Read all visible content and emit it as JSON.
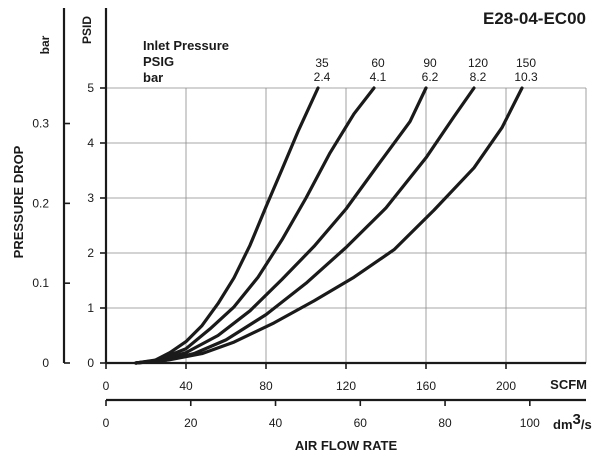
{
  "chart_data": {
    "type": "line",
    "title": "E28-04-EC00",
    "xlabel": "AIR FLOW RATE",
    "ylabel": "PRESSURE DROP",
    "x_units": {
      "primary": "SCFM",
      "secondary_prefix": "dm",
      "secondary_sup": "3",
      "secondary_suffix": "/s"
    },
    "y_units": {
      "primary": "PSID",
      "secondary": "bar"
    },
    "xlim": [
      0,
      240
    ],
    "ylim": [
      0,
      5
    ],
    "x_ticks": [
      0,
      40,
      80,
      120,
      160,
      200
    ],
    "x_ticks_secondary": [
      0,
      20,
      40,
      60,
      80,
      100
    ],
    "secondary_x_factor": 0.4719,
    "y_ticks": [
      0,
      1,
      2,
      3,
      4,
      5
    ],
    "y_ticks_secondary": [
      0,
      0.1,
      0.2,
      0.3
    ],
    "secondary_y_factor": 0.0689,
    "grid": true,
    "legend_header": [
      "Inlet Pressure",
      "PSIG",
      "bar"
    ],
    "series": [
      {
        "name": "35",
        "psig": "35",
        "bar": "2.4",
        "points": [
          [
            15,
            0
          ],
          [
            24,
            0.04
          ],
          [
            32,
            0.19
          ],
          [
            40,
            0.39
          ],
          [
            48,
            0.68
          ],
          [
            56,
            1.08
          ],
          [
            64,
            1.55
          ],
          [
            72,
            2.14
          ],
          [
            80,
            2.84
          ],
          [
            88,
            3.52
          ],
          [
            96,
            4.21
          ],
          [
            106,
            5.0
          ]
        ]
      },
      {
        "name": "60",
        "psig": "60",
        "bar": "4.1",
        "points": [
          [
            15,
            0
          ],
          [
            26,
            0.06
          ],
          [
            40,
            0.26
          ],
          [
            52,
            0.62
          ],
          [
            64,
            1.02
          ],
          [
            76,
            1.56
          ],
          [
            88,
            2.24
          ],
          [
            100,
            3.0
          ],
          [
            112,
            3.82
          ],
          [
            124,
            4.53
          ],
          [
            134,
            5.0
          ]
        ]
      },
      {
        "name": "90",
        "psig": "90",
        "bar": "6.2",
        "points": [
          [
            15,
            0
          ],
          [
            28,
            0.06
          ],
          [
            40,
            0.19
          ],
          [
            56,
            0.5
          ],
          [
            72,
            0.95
          ],
          [
            88,
            1.52
          ],
          [
            104,
            2.12
          ],
          [
            120,
            2.8
          ],
          [
            136,
            3.6
          ],
          [
            152,
            4.39
          ],
          [
            160,
            5.0
          ]
        ]
      },
      {
        "name": "120",
        "psig": "120",
        "bar": "8.2",
        "points": [
          [
            15,
            0
          ],
          [
            30,
            0.05
          ],
          [
            44,
            0.17
          ],
          [
            60,
            0.42
          ],
          [
            80,
            0.88
          ],
          [
            100,
            1.45
          ],
          [
            120,
            2.1
          ],
          [
            140,
            2.82
          ],
          [
            160,
            3.73
          ],
          [
            174,
            4.48
          ],
          [
            184,
            5.0
          ]
        ]
      },
      {
        "name": "150",
        "psig": "150",
        "bar": "10.3",
        "points": [
          [
            15,
            0
          ],
          [
            32,
            0.06
          ],
          [
            48,
            0.17
          ],
          [
            64,
            0.38
          ],
          [
            84,
            0.73
          ],
          [
            104,
            1.13
          ],
          [
            124,
            1.56
          ],
          [
            144,
            2.06
          ],
          [
            164,
            2.78
          ],
          [
            184,
            3.55
          ],
          [
            198,
            4.28
          ],
          [
            208,
            5.0
          ]
        ]
      }
    ]
  }
}
